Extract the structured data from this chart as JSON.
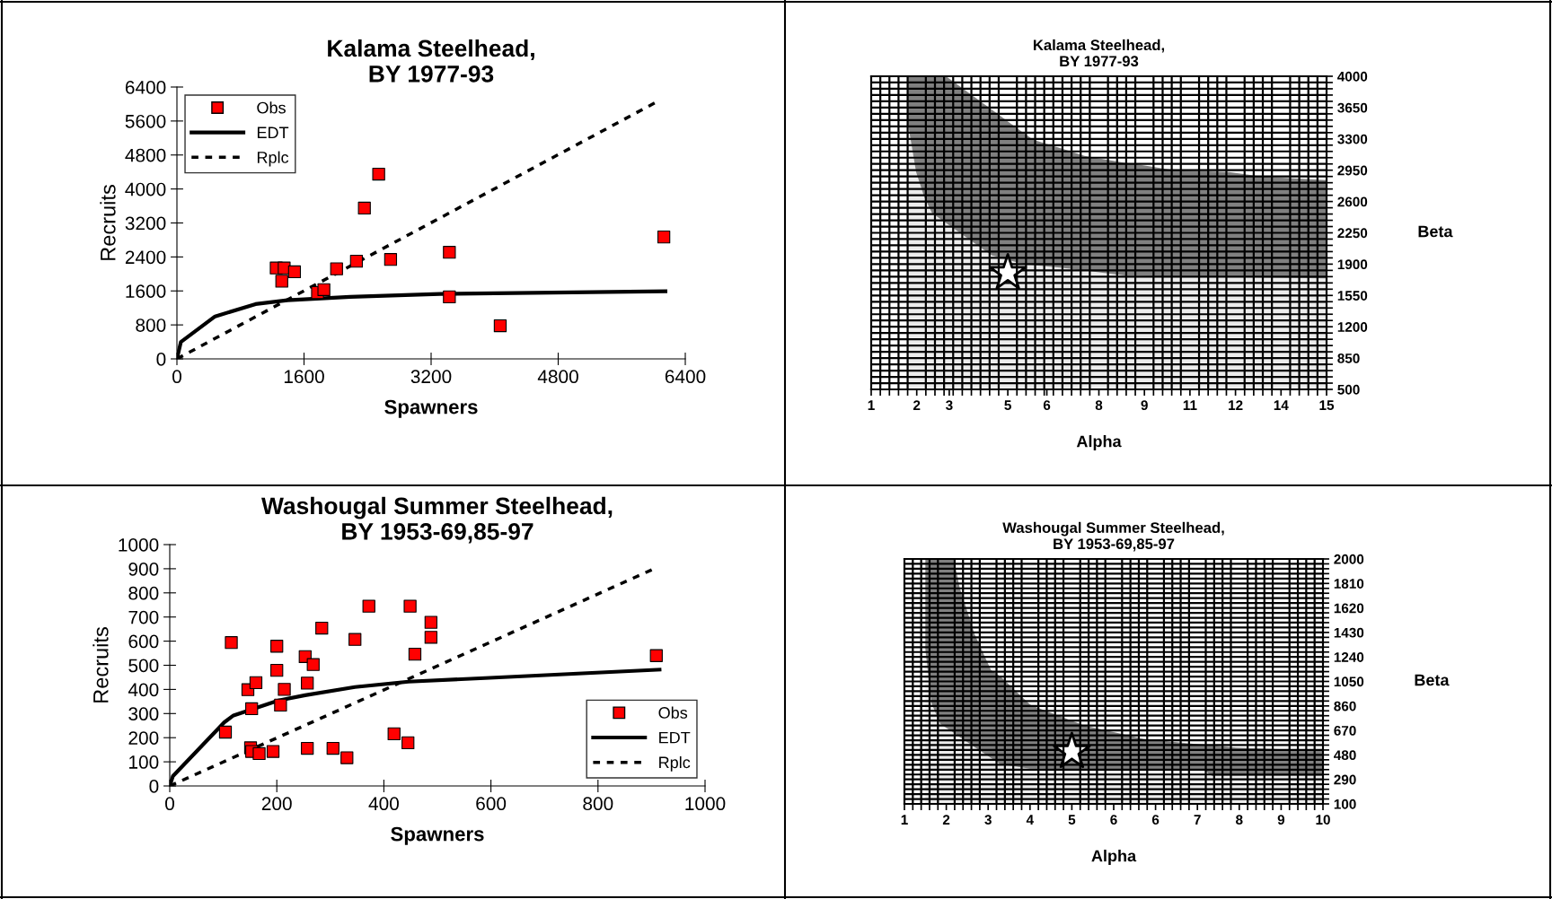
{
  "chart_data": [
    {
      "type": "scatter",
      "title": "Kalama Steelhead,\nBY 1977-93",
      "xlabel": "Spawners",
      "ylabel": "Recruits",
      "xlim": [
        0,
        6400
      ],
      "ylim": [
        0,
        6400
      ],
      "xticks": [
        0,
        1600,
        3200,
        4800,
        6400
      ],
      "yticks": [
        0,
        800,
        1600,
        2400,
        3200,
        4000,
        4800,
        5600,
        6400
      ],
      "legend": "top left",
      "grid": false,
      "series": [
        {
          "name": "Obs",
          "type": "scatter",
          "marker": "square",
          "color": "#ff0000",
          "x": [
            1250,
            1350,
            1320,
            1480,
            1770,
            1850,
            2010,
            2260,
            2360,
            2540,
            2690,
            3430,
            3430,
            4070,
            6130
          ],
          "values": [
            2140,
            2140,
            1830,
            2050,
            1560,
            1630,
            2120,
            2300,
            3550,
            4350,
            2340,
            2510,
            1460,
            780,
            2870
          ]
        },
        {
          "name": "EDT",
          "type": "line",
          "line_style": "solid",
          "color": "#000000",
          "x": [
            0,
            50,
            480,
            990,
            1390,
            2180,
            3310,
            6150
          ],
          "values": [
            0,
            400,
            1000,
            1290,
            1380,
            1460,
            1530,
            1590
          ]
        },
        {
          "name": "Rplc",
          "type": "line",
          "line_style": "dashed",
          "color": "#000000",
          "x": [
            0,
            6020
          ],
          "values": [
            0,
            6030
          ]
        }
      ]
    },
    {
      "type": "area",
      "title": "Kalama Steelhead,\nBY 1977-93",
      "xlabel": "Alpha",
      "y2label": "Beta",
      "xlim": [
        1,
        15
      ],
      "y2lim": [
        500,
        4000
      ],
      "grid": true,
      "stacked": true,
      "xticks": [
        {
          "value": 1,
          "label": "1"
        },
        {
          "value": 2.4,
          "label": "2"
        },
        {
          "value": 3.4,
          "label": "3"
        },
        {
          "value": 5.2,
          "label": "5"
        },
        {
          "value": 6.4,
          "label": "6"
        },
        {
          "value": 8,
          "label": "8"
        },
        {
          "value": 9.4,
          "label": "9"
        },
        {
          "value": 10.8,
          "label": "11"
        },
        {
          "value": 12.2,
          "label": "12"
        },
        {
          "value": 13.6,
          "label": "14"
        },
        {
          "value": 15,
          "label": "15"
        }
      ],
      "y2ticks": [
        500,
        850,
        1200,
        1550,
        1900,
        2250,
        2600,
        2950,
        3300,
        3650,
        4000
      ],
      "series": [
        {
          "type": "area",
          "axis": "y2",
          "color": "#ececec",
          "x": [
            2.13,
            2.38,
            2.63,
            2.87,
            3.3,
            4.7,
            5.59,
            5.98,
            6.87,
            7.56,
            8.84,
            9.13,
            10.3,
            12.0,
            13.0,
            15
          ],
          "values": [
            3470,
            2930,
            2650,
            2470,
            2360,
            2000,
            1910,
            1890,
            1860,
            1830,
            1770,
            1770,
            1760,
            1760,
            1750,
            1740
          ]
        },
        {
          "type": "area",
          "axis": "y2",
          "color": "#808080",
          "x": [
            2.13,
            2.38,
            2.63,
            2.87,
            3.3,
            4.7,
            5.59,
            5.98,
            6.87,
            7.56,
            8.84,
            9.13,
            10.3,
            12.0,
            13.0,
            15
          ],
          "values": [
            530,
            1070,
            1350,
            1530,
            1640,
            1630,
            1480,
            1400,
            1330,
            1280,
            1260,
            1250,
            1190,
            1170,
            1130,
            1100
          ]
        },
        {
          "type": "scatter",
          "axis": "y2",
          "marker": "star",
          "color": "#ffffff",
          "x": [
            5.2
          ],
          "values": [
            1800
          ]
        }
      ]
    },
    {
      "type": "scatter",
      "title": "Washougal Summer Steelhead,\nBY 1953-69,85-97",
      "xlabel": "Spawners",
      "ylabel": "Recruits",
      "xlim": [
        0,
        1000
      ],
      "ylim": [
        0,
        1000
      ],
      "xticks": [
        0,
        200,
        400,
        600,
        800,
        1000
      ],
      "yticks": [
        0,
        100,
        200,
        300,
        400,
        500,
        600,
        700,
        800,
        900,
        1000
      ],
      "legend": "bottom right",
      "grid": false,
      "series": [
        {
          "name": "Obs",
          "type": "scatter",
          "marker": "square",
          "color": "#ff0000",
          "x": [
            115,
            146,
            161,
            153,
            104,
            151,
            153,
            167,
            193,
            200,
            200,
            207,
            214,
            253,
            268,
            257,
            257,
            284,
            305,
            331,
            346,
            372,
            419,
            449,
            445,
            458,
            488,
            488,
            909
          ],
          "values": [
            594,
            399,
            428,
            320,
            223,
            158,
            143,
            134,
            143,
            579,
            479,
            335,
            400,
            536,
            503,
            426,
            156,
            654,
            156,
            117,
            607,
            745,
            216,
            745,
            179,
            546,
            678,
            616,
            540
          ]
        },
        {
          "name": "EDT",
          "type": "line",
          "line_style": "solid",
          "color": "#000000",
          "x": [
            0,
            6,
            102,
            119,
            203,
            253,
            346,
            446,
            589,
            915
          ],
          "values": [
            0,
            41,
            264,
            292,
            354,
            376,
            410,
            432,
            447,
            482
          ]
        },
        {
          "name": "Rplc",
          "type": "line",
          "line_style": "dashed",
          "color": "#000000",
          "x": [
            0,
            903
          ],
          "values": [
            0,
            898
          ]
        }
      ]
    },
    {
      "type": "area",
      "title": "Washougal Summer Steelhead,\nBY 1953-69,85-97",
      "xlabel": "Alpha",
      "y2label": "Beta",
      "xlim": [
        1,
        10
      ],
      "y2lim": [
        100,
        2000
      ],
      "grid": true,
      "stacked": true,
      "xticks": [
        {
          "value": 1,
          "label": "1"
        },
        {
          "value": 1.9,
          "label": "2"
        },
        {
          "value": 2.8,
          "label": "3"
        },
        {
          "value": 3.7,
          "label": "4"
        },
        {
          "value": 4.6,
          "label": "5"
        },
        {
          "value": 5.5,
          "label": "6"
        },
        {
          "value": 6.4,
          "label": "6"
        },
        {
          "value": 7.3,
          "label": "7"
        },
        {
          "value": 8.2,
          "label": "8"
        },
        {
          "value": 9.1,
          "label": "9"
        },
        {
          "value": 10,
          "label": "10"
        }
      ],
      "y2ticks": [
        100,
        290,
        480,
        670,
        860,
        1050,
        1240,
        1430,
        1620,
        1810,
        2000
      ],
      "series": [
        {
          "type": "area",
          "axis": "y2",
          "color": "#ececec",
          "x": [
            1.45,
            1.58,
            1.77,
            2.06,
            2.19,
            2.51,
            2.86,
            3.06,
            3.7,
            3.76,
            4.86,
            6.14,
            7.1,
            7.43,
            7.62,
            8.13,
            10
          ],
          "values": [
            1300,
            883,
            721,
            651,
            619,
            541,
            456,
            408,
            373,
            373,
            370,
            366,
            364,
            362,
            315,
            315,
            315
          ]
        },
        {
          "type": "area",
          "axis": "y2",
          "color": "#808080",
          "x": [
            1.45,
            1.58,
            1.77,
            2.06,
            2.19,
            2.51,
            2.86,
            3.06,
            3.7,
            3.76,
            4.86,
            6.14,
            7.1,
            7.43,
            7.62,
            8.13,
            10
          ],
          "values": [
            700,
            1117,
            1279,
            1349,
            1156,
            875,
            682,
            682,
            497,
            487,
            339,
            239,
            206,
            198,
            240,
            221,
            197
          ]
        },
        {
          "type": "scatter",
          "axis": "y2",
          "marker": "star",
          "color": "#ffffff",
          "x": [
            4.6
          ],
          "values": [
            505
          ]
        }
      ]
    }
  ]
}
